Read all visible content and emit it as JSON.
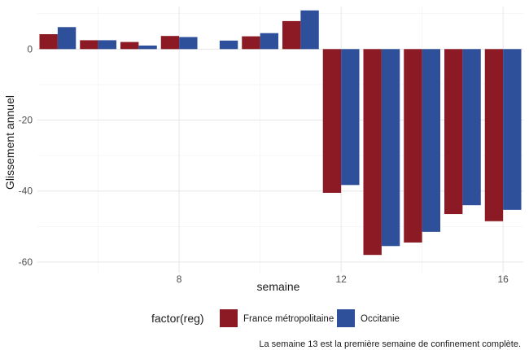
{
  "chart_data": {
    "type": "bar",
    "xlabel": "semaine",
    "ylabel": "Glissement annuel",
    "x_ticks": [
      8,
      12,
      16
    ],
    "y_ticks": [
      0,
      -20,
      -40,
      -60
    ],
    "xlim": [
      4.5,
      16.5
    ],
    "ylim": [
      -63,
      12
    ],
    "grid": true,
    "legend_title": "factor(reg)",
    "legend_position": "bottom",
    "caption": "La semaine 13 est la première semaine de confinement complète.",
    "categories": [
      5,
      6,
      7,
      8,
      9,
      10,
      11,
      12,
      13,
      14,
      15,
      16
    ],
    "series": [
      {
        "name": "France métropolitaine",
        "color": "#8b1a24",
        "values": [
          4.2,
          2.5,
          2.0,
          3.7,
          0,
          3.6,
          7.9,
          -40.5,
          -58.0,
          -54.5,
          -46.5,
          -48.5
        ]
      },
      {
        "name": "Occitanie",
        "color": "#2e4f99",
        "values": [
          6.2,
          2.5,
          1.0,
          3.4,
          2.4,
          4.5,
          10.9,
          -38.3,
          -55.5,
          -51.5,
          -44.0,
          -45.3
        ]
      }
    ]
  }
}
